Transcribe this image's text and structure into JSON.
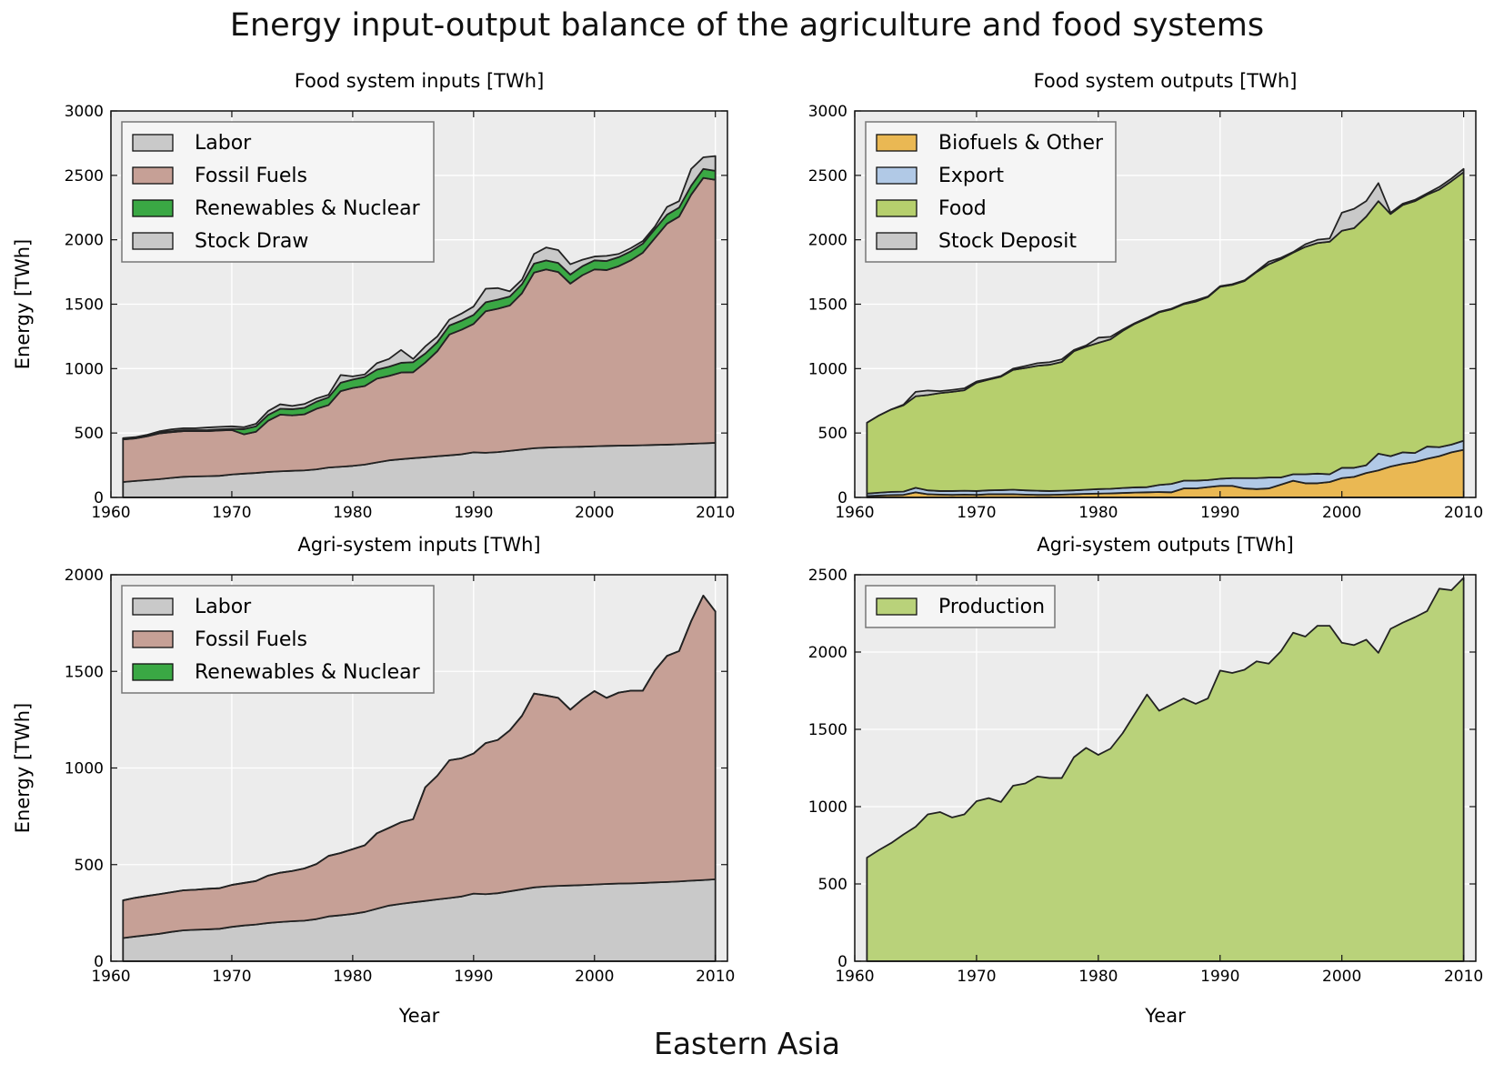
{
  "figure": {
    "title": "Energy input-output balance of the agriculture and food systems",
    "region": "Eastern Asia"
  },
  "colors": {
    "labor": "#c9c9c9",
    "fossil": "#c6a096",
    "renewables": "#3aa844",
    "stock": "#c9c9c9",
    "biofuels": "#eab853",
    "export": "#b1c9e6",
    "food": "#b6cf6d",
    "production": "#b9d27a",
    "plot_bg": "#ececec",
    "grid": "#ffffff"
  },
  "chart_data": [
    {
      "id": "food-inputs",
      "type": "area",
      "stacked": true,
      "title": "Food system inputs [TWh]",
      "xlabel": "",
      "ylabel": "Energy [TWh]",
      "xlim": [
        1960,
        2011
      ],
      "ylim": [
        0,
        3000
      ],
      "xticks": [
        1960,
        1970,
        1980,
        1990,
        2000,
        2010
      ],
      "yticks": [
        0,
        500,
        1000,
        1500,
        2000,
        2500,
        3000
      ],
      "grid": true,
      "legend": "top-left",
      "x": [
        1961,
        1962,
        1963,
        1964,
        1965,
        1966,
        1967,
        1968,
        1969,
        1970,
        1971,
        1972,
        1973,
        1974,
        1975,
        1976,
        1977,
        1978,
        1979,
        1980,
        1981,
        1982,
        1983,
        1984,
        1985,
        1986,
        1987,
        1988,
        1989,
        1990,
        1991,
        1992,
        1993,
        1994,
        1995,
        1996,
        1997,
        1998,
        1999,
        2000,
        2001,
        2002,
        2003,
        2004,
        2005,
        2006,
        2007,
        2008,
        2009,
        2010
      ],
      "series": [
        {
          "name": "Labor",
          "color_key": "labor",
          "values": [
            120,
            128,
            135,
            142,
            152,
            160,
            163,
            165,
            168,
            178,
            185,
            190,
            198,
            203,
            207,
            210,
            218,
            232,
            238,
            245,
            255,
            272,
            288,
            297,
            305,
            312,
            320,
            327,
            335,
            350,
            347,
            352,
            362,
            372,
            382,
            387,
            390,
            392,
            394,
            397,
            400,
            402,
            403,
            405,
            408,
            410,
            413,
            417,
            420,
            424
          ]
        },
        {
          "name": "Fossil Fuels",
          "color_key": "fossil",
          "values": [
            330,
            330,
            340,
            355,
            355,
            355,
            352,
            350,
            352,
            345,
            305,
            320,
            397,
            440,
            430,
            435,
            470,
            485,
            587,
            605,
            610,
            650,
            655,
            673,
            667,
            735,
            815,
            938,
            967,
            997,
            1098,
            1113,
            1128,
            1213,
            1363,
            1383,
            1360,
            1268,
            1331,
            1373,
            1365,
            1393,
            1437,
            1495,
            1605,
            1715,
            1767,
            1933,
            2060,
            2041
          ]
        },
        {
          "name": "Renewables & Nuclear",
          "color_key": "renewables",
          "values": [
            5,
            5,
            6,
            6,
            6,
            7,
            7,
            8,
            8,
            9,
            40,
            42,
            45,
            45,
            48,
            50,
            55,
            60,
            65,
            65,
            70,
            70,
            72,
            75,
            78,
            70,
            70,
            70,
            70,
            70,
            70,
            70,
            70,
            70,
            70,
            70,
            70,
            70,
            70,
            70,
            70,
            70,
            70,
            70,
            70,
            70,
            70,
            70,
            70,
            70
          ]
        },
        {
          "name": "Stock Draw",
          "color_key": "stock",
          "values": [
            5,
            5,
            5,
            10,
            15,
            15,
            15,
            20,
            20,
            20,
            15,
            20,
            30,
            35,
            25,
            30,
            25,
            20,
            60,
            25,
            20,
            50,
            60,
            100,
            25,
            55,
            45,
            45,
            55,
            65,
            105,
            90,
            40,
            35,
            75,
            100,
            100,
            80,
            50,
            30,
            40,
            25,
            25,
            20,
            20,
            60,
            50,
            130,
            90,
            115
          ]
        }
      ]
    },
    {
      "id": "food-outputs",
      "type": "area",
      "stacked": true,
      "title": "Food system outputs [TWh]",
      "xlabel": "",
      "ylabel": "",
      "xlim": [
        1960,
        2011
      ],
      "ylim": [
        0,
        3000
      ],
      "xticks": [
        1960,
        1970,
        1980,
        1990,
        2000,
        2010
      ],
      "yticks": [
        0,
        500,
        1000,
        1500,
        2000,
        2500,
        3000
      ],
      "grid": true,
      "legend": "top-left",
      "x": [
        1961,
        1962,
        1963,
        1964,
        1965,
        1966,
        1967,
        1968,
        1969,
        1970,
        1971,
        1972,
        1973,
        1974,
        1975,
        1976,
        1977,
        1978,
        1979,
        1980,
        1981,
        1982,
        1983,
        1984,
        1985,
        1986,
        1987,
        1988,
        1989,
        1990,
        1991,
        1992,
        1993,
        1994,
        1995,
        1996,
        1997,
        1998,
        1999,
        2000,
        2001,
        2002,
        2003,
        2004,
        2005,
        2006,
        2007,
        2008,
        2009,
        2010
      ],
      "series": [
        {
          "name": "Biofuels & Other",
          "color_key": "biofuels",
          "values": [
            10,
            15,
            18,
            20,
            40,
            25,
            22,
            20,
            22,
            20,
            25,
            25,
            25,
            22,
            20,
            20,
            22,
            25,
            28,
            30,
            32,
            35,
            38,
            40,
            42,
            40,
            70,
            70,
            80,
            90,
            90,
            70,
            65,
            70,
            100,
            130,
            110,
            110,
            120,
            150,
            160,
            190,
            210,
            240,
            260,
            275,
            300,
            320,
            350,
            370
          ]
        },
        {
          "name": "Export",
          "color_key": "export",
          "values": [
            20,
            22,
            25,
            25,
            35,
            30,
            28,
            30,
            30,
            30,
            30,
            32,
            35,
            33,
            32,
            30,
            30,
            30,
            32,
            35,
            35,
            38,
            40,
            40,
            55,
            65,
            60,
            60,
            55,
            55,
            60,
            80,
            85,
            85,
            55,
            50,
            70,
            75,
            60,
            80,
            70,
            60,
            130,
            80,
            90,
            70,
            95,
            70,
            60,
            70
          ]
        },
        {
          "name": "Food",
          "color_key": "food",
          "values": [
            550,
            600,
            640,
            670,
            710,
            740,
            760,
            770,
            780,
            840,
            860,
            880,
            930,
            950,
            970,
            980,
            1000,
            1080,
            1110,
            1135,
            1160,
            1220,
            1270,
            1310,
            1340,
            1355,
            1370,
            1390,
            1420,
            1490,
            1500,
            1530,
            1600,
            1655,
            1695,
            1720,
            1765,
            1790,
            1805,
            1840,
            1860,
            1930,
            1960,
            1880,
            1920,
            1955,
            1955,
            2000,
            2045,
            2085
          ]
        },
        {
          "name": "Stock Deposit",
          "color_key": "stock",
          "values": [
            0,
            0,
            0,
            5,
            35,
            35,
            15,
            15,
            15,
            10,
            5,
            5,
            10,
            15,
            20,
            20,
            20,
            10,
            10,
            40,
            20,
            10,
            5,
            5,
            5,
            5,
            5,
            10,
            5,
            5,
            5,
            5,
            5,
            20,
            10,
            5,
            20,
            25,
            25,
            140,
            150,
            120,
            140,
            10,
            10,
            10,
            10,
            20,
            20,
            25
          ]
        }
      ]
    },
    {
      "id": "agri-inputs",
      "type": "area",
      "stacked": true,
      "title": "Agri-system inputs [TWh]",
      "xlabel": "Year",
      "ylabel": "Energy [TWh]",
      "xlim": [
        1960,
        2011
      ],
      "ylim": [
        0,
        2000
      ],
      "xticks": [
        1960,
        1970,
        1980,
        1990,
        2000,
        2010
      ],
      "yticks": [
        0,
        500,
        1000,
        1500,
        2000
      ],
      "grid": true,
      "legend": "top-left",
      "x": [
        1961,
        1962,
        1963,
        1964,
        1965,
        1966,
        1967,
        1968,
        1969,
        1970,
        1971,
        1972,
        1973,
        1974,
        1975,
        1976,
        1977,
        1978,
        1979,
        1980,
        1981,
        1982,
        1983,
        1984,
        1985,
        1986,
        1987,
        1988,
        1989,
        1990,
        1991,
        1992,
        1993,
        1994,
        1995,
        1996,
        1997,
        1998,
        1999,
        2000,
        2001,
        2002,
        2003,
        2004,
        2005,
        2006,
        2007,
        2008,
        2009,
        2010
      ],
      "series": [
        {
          "name": "Labor",
          "color_key": "labor",
          "values": [
            120,
            128,
            135,
            142,
            152,
            160,
            163,
            165,
            168,
            178,
            185,
            190,
            198,
            203,
            207,
            210,
            218,
            232,
            238,
            245,
            255,
            272,
            288,
            297,
            305,
            312,
            320,
            327,
            335,
            350,
            347,
            352,
            362,
            372,
            382,
            387,
            390,
            392,
            394,
            397,
            400,
            402,
            403,
            405,
            408,
            410,
            413,
            417,
            420,
            424
          ]
        },
        {
          "name": "Fossil Fuels",
          "color_key": "fossil",
          "values": [
            195,
            200,
            203,
            205,
            205,
            207,
            207,
            210,
            210,
            217,
            220,
            225,
            245,
            255,
            260,
            270,
            285,
            313,
            322,
            335,
            345,
            390,
            402,
            422,
            430,
            588,
            640,
            713,
            715,
            725,
            782,
            793,
            833,
            898,
            1003,
            988,
            973,
            910,
            961,
            1001,
            963,
            988,
            997,
            995,
            1097,
            1170,
            1192,
            1343,
            1472,
            1386
          ]
        },
        {
          "name": "Renewables & Nuclear",
          "color_key": "renewables",
          "values": [
            0,
            0,
            0,
            0,
            0,
            0,
            0,
            0,
            0,
            0,
            0,
            0,
            0,
            0,
            0,
            0,
            0,
            0,
            0,
            0,
            0,
            0,
            0,
            0,
            0,
            0,
            0,
            0,
            0,
            0,
            0,
            0,
            0,
            0,
            0,
            0,
            0,
            0,
            0,
            0,
            0,
            0,
            0,
            0,
            0,
            0,
            0,
            0,
            0,
            0
          ]
        }
      ]
    },
    {
      "id": "agri-outputs",
      "type": "area",
      "stacked": true,
      "title": "Agri-system outputs [TWh]",
      "xlabel": "Year",
      "ylabel": "",
      "xlim": [
        1960,
        2011
      ],
      "ylim": [
        0,
        2500
      ],
      "xticks": [
        1960,
        1970,
        1980,
        1990,
        2000,
        2010
      ],
      "yticks": [
        0,
        500,
        1000,
        1500,
        2000,
        2500
      ],
      "grid": true,
      "legend": "top-left",
      "x": [
        1961,
        1962,
        1963,
        1964,
        1965,
        1966,
        1967,
        1968,
        1969,
        1970,
        1971,
        1972,
        1973,
        1974,
        1975,
        1976,
        1977,
        1978,
        1979,
        1980,
        1981,
        1982,
        1983,
        1984,
        1985,
        1986,
        1987,
        1988,
        1989,
        1990,
        1991,
        1992,
        1993,
        1994,
        1995,
        1996,
        1997,
        1998,
        1999,
        2000,
        2001,
        2002,
        2003,
        2004,
        2005,
        2006,
        2007,
        2008,
        2009,
        2010
      ],
      "series": [
        {
          "name": "Production",
          "color_key": "production",
          "values": [
            670,
            720,
            765,
            820,
            870,
            950,
            965,
            930,
            950,
            1035,
            1055,
            1030,
            1135,
            1150,
            1195,
            1185,
            1185,
            1320,
            1380,
            1335,
            1375,
            1475,
            1600,
            1725,
            1620,
            1660,
            1700,
            1665,
            1700,
            1880,
            1865,
            1885,
            1940,
            1925,
            2005,
            2125,
            2100,
            2170,
            2170,
            2060,
            2045,
            2080,
            1995,
            2150,
            2190,
            2225,
            2265,
            2410,
            2400,
            2480
          ]
        }
      ]
    }
  ]
}
